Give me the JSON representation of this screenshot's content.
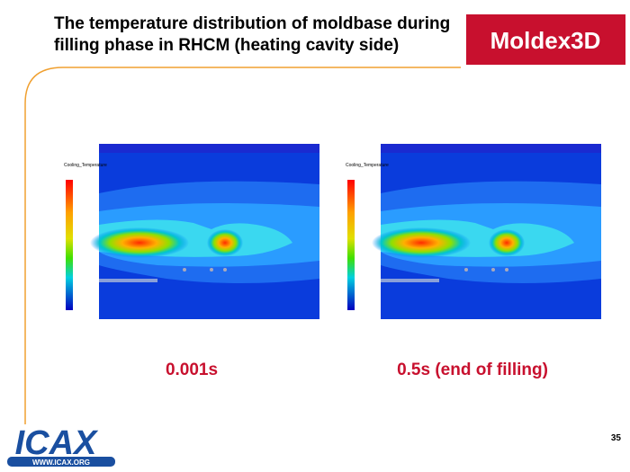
{
  "header": {
    "title_line1": "The temperature distribution of moldbase during",
    "title_line2": "filling phase in RHCM (heating cavity side)",
    "logo": "Moldex3D"
  },
  "figures": [
    {
      "legend_title": "Cooling_Temperature",
      "caption": "0.001s"
    },
    {
      "legend_title": "Cooling_Temperature",
      "caption": "0.5s (end of filling)"
    }
  ],
  "footer": {
    "logo": "ICAX",
    "logo_url": "WWW.ICAX.ORG",
    "page_number": "35"
  }
}
